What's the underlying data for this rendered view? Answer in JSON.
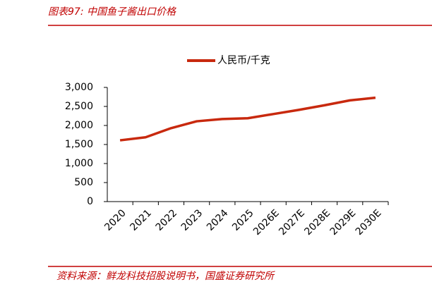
{
  "chart_data": {
    "type": "line",
    "title": "图表97:  中国鱼子酱出口价格",
    "source": "资料来源：鲜龙科技招股说明书，国盛证券研究所",
    "categories": [
      "2020",
      "2021",
      "2022",
      "2023",
      "2024",
      "2025",
      "2026E",
      "2027E",
      "2028E",
      "2029E",
      "2030E"
    ],
    "series": [
      {
        "name": "人民币/千克",
        "color": "#c8290e",
        "values": [
          1610,
          1690,
          1930,
          2110,
          2170,
          2190,
          2300,
          2410,
          2530,
          2660,
          2730
        ]
      }
    ],
    "ylim": [
      0,
      3000
    ],
    "yticks": [
      0,
      500,
      {
        "value": 1000,
        "label": "1,000"
      },
      {
        "value": 1500,
        "label": "1,500"
      },
      {
        "value": 2000,
        "label": "2,000"
      },
      {
        "value": 2500,
        "label": "2,500"
      },
      {
        "value": 3000,
        "label": "3,000"
      }
    ],
    "grid": false,
    "legend": "top"
  }
}
